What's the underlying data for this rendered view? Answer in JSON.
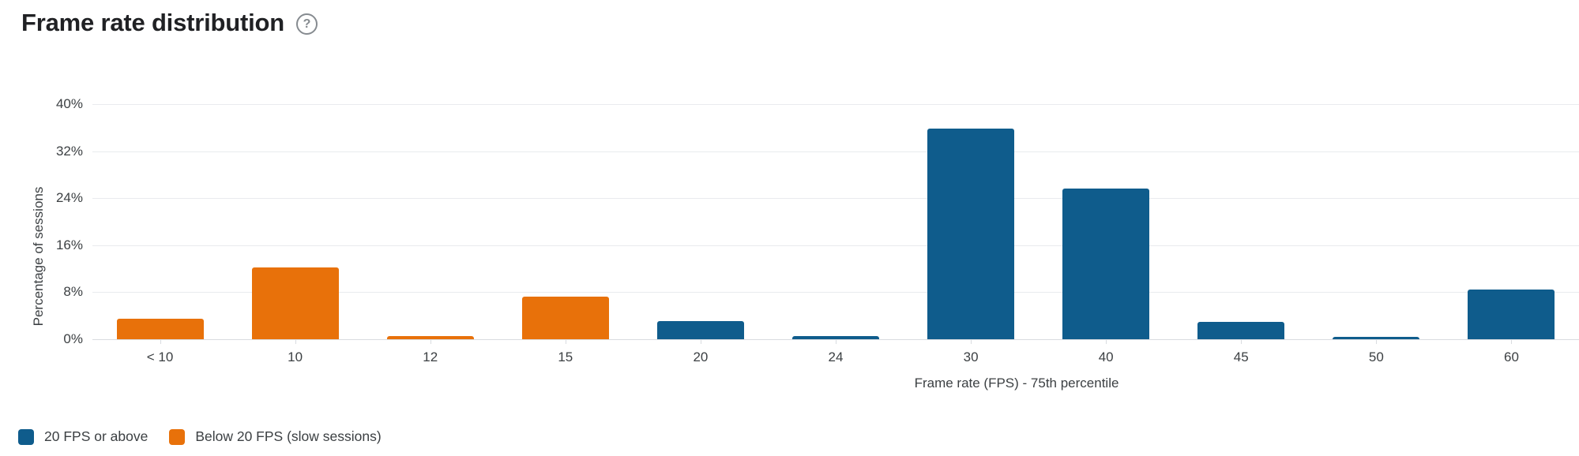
{
  "page": {
    "title": "Frame rate distribution",
    "help_icon_glyph": "?"
  },
  "chart_data": {
    "type": "bar",
    "title": "Frame rate distribution",
    "categories": [
      "< 10",
      "10",
      "12",
      "15",
      "20",
      "24",
      "30",
      "40",
      "45",
      "50",
      "60"
    ],
    "series": [
      {
        "name": "20 FPS or above",
        "color": "#0f5c8c",
        "values": [
          null,
          null,
          null,
          null,
          3.1,
          0.5,
          35.8,
          25.6,
          2.9,
          0.4,
          8.4
        ]
      },
      {
        "name": "Below 20 FPS (slow sessions)",
        "color": "#e8710a",
        "values": [
          3.5,
          12.2,
          0.5,
          7.3,
          null,
          null,
          null,
          null,
          null,
          null,
          null
        ]
      }
    ],
    "xlabel": "Frame rate (FPS) - 75th percentile",
    "ylabel": "Percentage of sessions",
    "ylim": [
      0,
      40
    ],
    "ytick_step": 8,
    "ytick_suffix": "%",
    "grid": true,
    "legend_position": "bottom-left"
  },
  "colors": {
    "title_text": "#202124",
    "axis_text": "#3c4043",
    "gridline": "#e9ebee",
    "axis_line": "#d9dce0",
    "help_icon": "#868b90",
    "series_blue": "#0f5c8c",
    "series_orange": "#e8710a"
  }
}
